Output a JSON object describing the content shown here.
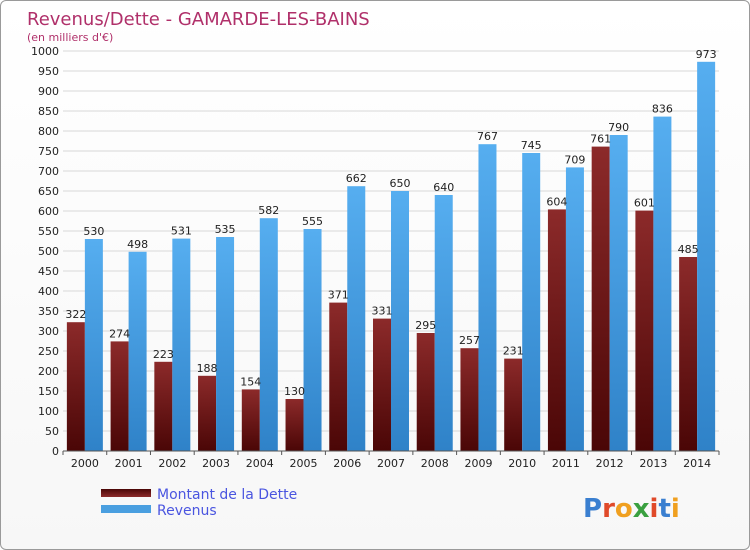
{
  "chart_data": {
    "type": "bar",
    "title": "Revenus/Dette - GAMARDE-LES-BAINS",
    "subtitle": "(en milliers d'€)",
    "categories": [
      "2000",
      "2001",
      "2002",
      "2003",
      "2004",
      "2005",
      "2006",
      "2007",
      "2008",
      "2009",
      "2010",
      "2011",
      "2012",
      "2013",
      "2014"
    ],
    "series": [
      {
        "name": "Montant de la Dette",
        "color": "#7a1c1c",
        "values": [
          322,
          274,
          223,
          188,
          154,
          130,
          371,
          331,
          295,
          257,
          231,
          604,
          761,
          601,
          485
        ]
      },
      {
        "name": "Revenus",
        "color": "#4a9fe0",
        "values": [
          530,
          498,
          531,
          535,
          582,
          555,
          662,
          650,
          640,
          767,
          745,
          709,
          790,
          836,
          973
        ]
      }
    ],
    "ylim": [
      0,
      1000
    ],
    "ytick_step": 50,
    "grid": true,
    "legend_position": "bottom-left"
  },
  "colors": {
    "title": "#b0306a",
    "legend_text": "#4a55e0",
    "grid": "#d8d8d8"
  },
  "logo": {
    "text": "Proxiti"
  }
}
